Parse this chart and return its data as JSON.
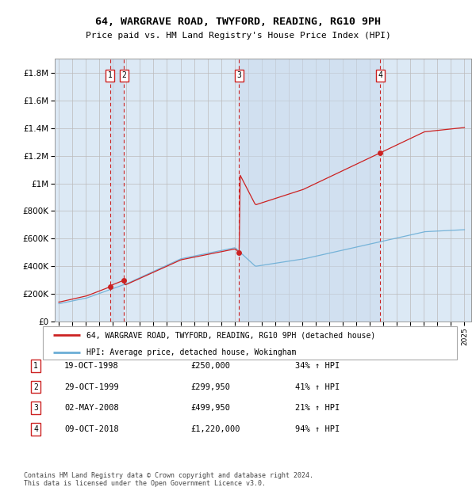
{
  "title": "64, WARGRAVE ROAD, TWYFORD, READING, RG10 9PH",
  "subtitle": "Price paid vs. HM Land Registry's House Price Index (HPI)",
  "footer": "Contains HM Land Registry data © Crown copyright and database right 2024.\nThis data is licensed under the Open Government Licence v3.0.",
  "legend_line1": "64, WARGRAVE ROAD, TWYFORD, READING, RG10 9PH (detached house)",
  "legend_line2": "HPI: Average price, detached house, Wokingham",
  "sales": [
    {
      "num": 1,
      "date": "19-OCT-1998",
      "price": 250000,
      "year": 1998.79,
      "pct": "34% ↑ HPI"
    },
    {
      "num": 2,
      "date": "29-OCT-1999",
      "price": 299950,
      "year": 1999.83,
      "pct": "41% ↑ HPI"
    },
    {
      "num": 3,
      "date": "02-MAY-2008",
      "price": 499950,
      "year": 2008.33,
      "pct": "21% ↑ HPI"
    },
    {
      "num": 4,
      "date": "09-OCT-2018",
      "price": 1220000,
      "year": 2018.77,
      "pct": "94% ↑ HPI"
    }
  ],
  "hpi_color": "#6baed6",
  "price_color": "#cc2222",
  "vline_color": "#cc2222",
  "bg_color": "#dce9f5",
  "grid_color": "#bbbbbb",
  "ylim": [
    0,
    1900000
  ],
  "yticks": [
    0,
    200000,
    400000,
    600000,
    800000,
    1000000,
    1200000,
    1400000,
    1600000,
    1800000
  ],
  "xlim": [
    1994.7,
    2025.5
  ]
}
